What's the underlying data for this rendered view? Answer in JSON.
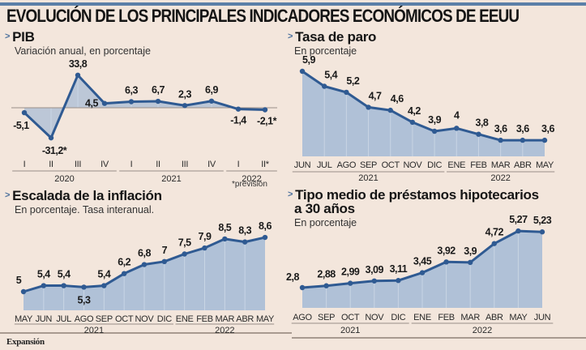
{
  "title": "EVOLUCIÓN DE LOS PRINCIPALES INDICADORES ECONÓMICOS DE EEUU",
  "footnote": "*previsión",
  "brand": "Expansión",
  "colors": {
    "line": "#2f5a92",
    "fill": "#a9bcd6",
    "accent": "#5b7fa8",
    "background": "#f3e6dc"
  },
  "chart_data": [
    {
      "id": "pib",
      "type": "line",
      "title": "PIB",
      "subtitle": "Variación anual, en porcentaje",
      "categories": [
        "I",
        "II",
        "III",
        "IV",
        "I",
        "II",
        "III",
        "IV",
        "I",
        "II*"
      ],
      "years": [
        {
          "label": "2020",
          "span": [
            0,
            3
          ]
        },
        {
          "label": "2021",
          "span": [
            4,
            7
          ]
        },
        {
          "label": "2022",
          "span": [
            8,
            9
          ]
        }
      ],
      "values": [
        -5.1,
        -31.2,
        33.8,
        4.5,
        6.3,
        6.7,
        2.3,
        6.9,
        -1.4,
        -2.1
      ],
      "value_labels": [
        "-5,1",
        "-31,2*",
        "33,8",
        "4,5",
        "6,3",
        "6,7",
        "2,3",
        "6,9",
        "-1,4",
        "-2,1*"
      ],
      "baseline": 0,
      "xlabel": "",
      "ylabel": ""
    },
    {
      "id": "paro",
      "type": "area",
      "title": "Tasa de paro",
      "subtitle": "En porcentaje",
      "categories": [
        "JUN",
        "JUL",
        "AGO",
        "SEP",
        "OCT",
        "NOV",
        "DIC",
        "ENE",
        "FEB",
        "MAR",
        "ABR",
        "MAY"
      ],
      "years": [
        {
          "label": "2021",
          "span": [
            0,
            6
          ]
        },
        {
          "label": "2022",
          "span": [
            7,
            11
          ]
        }
      ],
      "values": [
        5.9,
        5.4,
        5.2,
        4.7,
        4.6,
        4.2,
        3.9,
        4,
        3.8,
        3.6,
        3.6,
        3.6
      ],
      "value_labels": [
        "5,9",
        "5,4",
        "5,2",
        "4,7",
        "4,6",
        "4,2",
        "3,9",
        "4",
        "3,8",
        "3,6",
        "3,6",
        "3,6"
      ],
      "xlabel": "",
      "ylabel": ""
    },
    {
      "id": "inflacion",
      "type": "area",
      "title": "Escalada de la inflación",
      "subtitle": "En porcentaje. Tasa interanual.",
      "categories": [
        "MAY",
        "JUN",
        "JUL",
        "AGO",
        "SEP",
        "OCT",
        "NOV",
        "DIC",
        "ENE",
        "FEB",
        "MAR",
        "ABR",
        "MAY"
      ],
      "years": [
        {
          "label": "2021",
          "span": [
            0,
            7
          ]
        },
        {
          "label": "2022",
          "span": [
            8,
            12
          ]
        }
      ],
      "values": [
        5,
        5.4,
        5.4,
        5.3,
        5.4,
        6.2,
        6.8,
        7,
        7.5,
        7.9,
        8.5,
        8.3,
        8.6
      ],
      "value_labels": [
        "5",
        "5,4",
        "5,4",
        "5,3",
        "5,4",
        "6,2",
        "6,8",
        "7",
        "7,5",
        "7,9",
        "8,5",
        "8,3",
        "8,6"
      ],
      "xlabel": "",
      "ylabel": ""
    },
    {
      "id": "hipotecas",
      "type": "area",
      "title": "Tipo medio de préstamos hipotecarios a 30 años",
      "title_lines": [
        "Tipo medio de préstamos hipotecarios",
        "a 30 años"
      ],
      "subtitle": "En porcentaje",
      "categories": [
        "AGO",
        "SEP",
        "OCT",
        "NOV",
        "DIC",
        "ENE",
        "FEB",
        "MAR",
        "ABR",
        "MAY",
        "JUN"
      ],
      "years": [
        {
          "label": "2021",
          "span": [
            0,
            4
          ]
        },
        {
          "label": "2022",
          "span": [
            5,
            10
          ]
        }
      ],
      "values": [
        2.8,
        2.88,
        2.99,
        3.09,
        3.11,
        3.45,
        3.92,
        3.9,
        4.72,
        5.27,
        5.23
      ],
      "value_labels": [
        "2,8",
        "2,88",
        "2,99",
        "3,09",
        "3,11",
        "3,45",
        "3,92",
        "3,9",
        "4,72",
        "5,27",
        "5,23"
      ],
      "xlabel": "",
      "ylabel": ""
    }
  ]
}
